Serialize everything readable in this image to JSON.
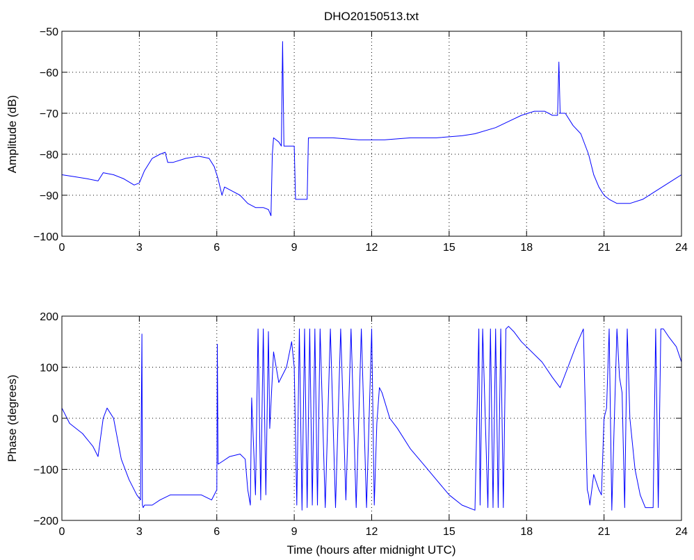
{
  "chart_data": [
    {
      "type": "line",
      "title": "DHO20150513.txt",
      "xlabel": "",
      "ylabel": "Amplitude (dB)",
      "xlim": [
        0,
        24
      ],
      "ylim": [
        -100,
        -50
      ],
      "xticks": [
        0,
        3,
        6,
        9,
        12,
        15,
        18,
        21,
        24
      ],
      "yticks": [
        -100,
        -90,
        -80,
        -70,
        -60,
        -50
      ],
      "xtick_labels": [
        "0",
        "3",
        "6",
        "9",
        "12",
        "15",
        "18",
        "21",
        "24"
      ],
      "ytick_labels": [
        "−100",
        "−90",
        "−80",
        "−70",
        "−60",
        "−50"
      ],
      "grid": true,
      "color": "#0000ff",
      "series": [
        {
          "x": [
            0,
            0.5,
            1,
            1.4,
            1.6,
            2.0,
            2.4,
            2.8,
            3.0,
            3.2,
            3.5,
            3.8,
            4.0,
            4.1,
            4.3,
            4.8,
            5.3,
            5.7,
            5.9,
            6.05,
            6.2,
            6.3,
            6.6,
            6.9,
            7.2,
            7.5,
            7.8,
            8.0,
            8.1,
            8.15,
            8.2,
            8.4,
            8.5,
            8.55,
            8.6,
            8.8,
            9.0,
            9.05,
            9.2,
            9.4,
            9.5,
            9.55,
            9.7,
            10.5,
            11.5,
            12.5,
            13.5,
            14.5,
            15.5,
            16.0,
            16.8,
            17.3,
            17.8,
            18.3,
            18.7,
            19.0,
            19.2,
            19.25,
            19.3,
            19.5,
            19.8,
            20.1,
            20.4,
            20.6,
            20.8,
            21.0,
            21.2,
            21.5,
            22.0,
            22.5,
            23.0,
            23.5,
            24.0
          ],
          "y": [
            -85,
            -85.5,
            -86,
            -86.5,
            -84.5,
            -85,
            -86,
            -87.5,
            -87,
            -84,
            -81,
            -80,
            -79.5,
            -82,
            -82,
            -81,
            -80.5,
            -81,
            -83,
            -86,
            -90,
            -88,
            -89,
            -90,
            -92,
            -93,
            -93,
            -93.5,
            -95,
            -80,
            -76,
            -77,
            -78,
            -52.5,
            -78,
            -78,
            -78,
            -91,
            -91,
            -91,
            -91,
            -76,
            -76,
            -76,
            -76.5,
            -76.5,
            -76,
            -76,
            -75.5,
            -75,
            -73.5,
            -72,
            -70.5,
            -69.5,
            -69.5,
            -70.5,
            -70.5,
            -57.5,
            -70,
            -70,
            -73,
            -75,
            -80,
            -85,
            -88,
            -90,
            -91,
            -92,
            -92,
            -91,
            -89,
            -87,
            -85
          ]
        }
      ]
    },
    {
      "type": "line",
      "title": "",
      "xlabel": "Time (hours after midnight UTC)",
      "ylabel": "Phase (degrees)",
      "xlim": [
        0,
        24
      ],
      "ylim": [
        -200,
        200
      ],
      "xticks": [
        0,
        3,
        6,
        9,
        12,
        15,
        18,
        21,
        24
      ],
      "yticks": [
        -200,
        -100,
        0,
        100,
        200
      ],
      "xtick_labels": [
        "0",
        "3",
        "6",
        "9",
        "12",
        "15",
        "18",
        "21",
        "24"
      ],
      "ytick_labels": [
        "−200",
        "−100",
        "0",
        "100",
        "200"
      ],
      "grid": true,
      "color": "#0000ff",
      "series": [
        {
          "x": [
            0,
            0.3,
            0.8,
            1.2,
            1.4,
            1.6,
            1.75,
            2.0,
            2.3,
            2.6,
            2.9,
            3.05,
            3.1,
            3.12,
            3.15,
            3.2,
            3.5,
            3.8,
            4.2,
            4.6,
            5.0,
            5.4,
            5.8,
            6.0,
            6.02,
            6.05,
            6.2,
            6.5,
            6.9,
            7.1,
            7.2,
            7.3,
            7.35,
            7.5,
            7.6,
            7.7,
            7.8,
            7.9,
            8.0,
            8.05,
            8.2,
            8.4,
            8.7,
            8.9,
            9.0,
            9.1,
            9.2,
            9.3,
            9.4,
            9.5,
            9.6,
            9.7,
            9.8,
            9.9,
            10.0,
            10.2,
            10.4,
            10.6,
            10.8,
            11.0,
            11.2,
            11.4,
            11.6,
            11.8,
            12.0,
            12.1,
            12.2,
            12.3,
            12.4,
            12.7,
            13.0,
            13.5,
            14.0,
            14.5,
            15.0,
            15.5,
            16.0,
            16.15,
            16.2,
            16.3,
            16.5,
            16.6,
            16.7,
            16.8,
            16.9,
            17.0,
            17.1,
            17.2,
            17.3,
            17.5,
            17.8,
            18.2,
            18.6,
            19.0,
            19.3,
            19.6,
            19.9,
            20.2,
            20.35,
            20.4,
            20.45,
            20.6,
            20.8,
            20.9,
            21.0,
            21.1,
            21.2,
            21.3,
            21.4,
            21.5,
            21.6,
            21.7,
            21.8,
            21.9,
            22.0,
            22.2,
            22.4,
            22.6,
            22.8,
            22.9,
            23.0,
            23.1,
            23.2,
            23.3,
            23.5,
            23.8,
            24.0
          ],
          "y": [
            20,
            -10,
            -30,
            -55,
            -75,
            0,
            20,
            0,
            -80,
            -120,
            -150,
            -160,
            165,
            -170,
            -175,
            -170,
            -170,
            -160,
            -150,
            -150,
            -150,
            -150,
            -160,
            -140,
            145,
            -90,
            -85,
            -75,
            -70,
            -80,
            -140,
            -170,
            40,
            -150,
            175,
            -160,
            175,
            -150,
            170,
            -20,
            130,
            70,
            100,
            150,
            100,
            -170,
            175,
            -180,
            175,
            -175,
            175,
            -170,
            175,
            -170,
            175,
            -175,
            175,
            -175,
            175,
            -160,
            175,
            -175,
            175,
            -175,
            175,
            -170,
            -10,
            60,
            50,
            0,
            -20,
            -60,
            -90,
            -120,
            -150,
            -170,
            -180,
            175,
            -170,
            175,
            -175,
            175,
            -175,
            175,
            -175,
            175,
            -175,
            175,
            180,
            170,
            150,
            130,
            110,
            80,
            60,
            100,
            140,
            175,
            -140,
            -150,
            -170,
            -110,
            -140,
            -150,
            0,
            20,
            175,
            -180,
            0,
            175,
            80,
            50,
            -175,
            175,
            0,
            -100,
            -150,
            -175,
            -175,
            -175,
            175,
            -175,
            175,
            175,
            160,
            140,
            110
          ]
        }
      ]
    }
  ]
}
